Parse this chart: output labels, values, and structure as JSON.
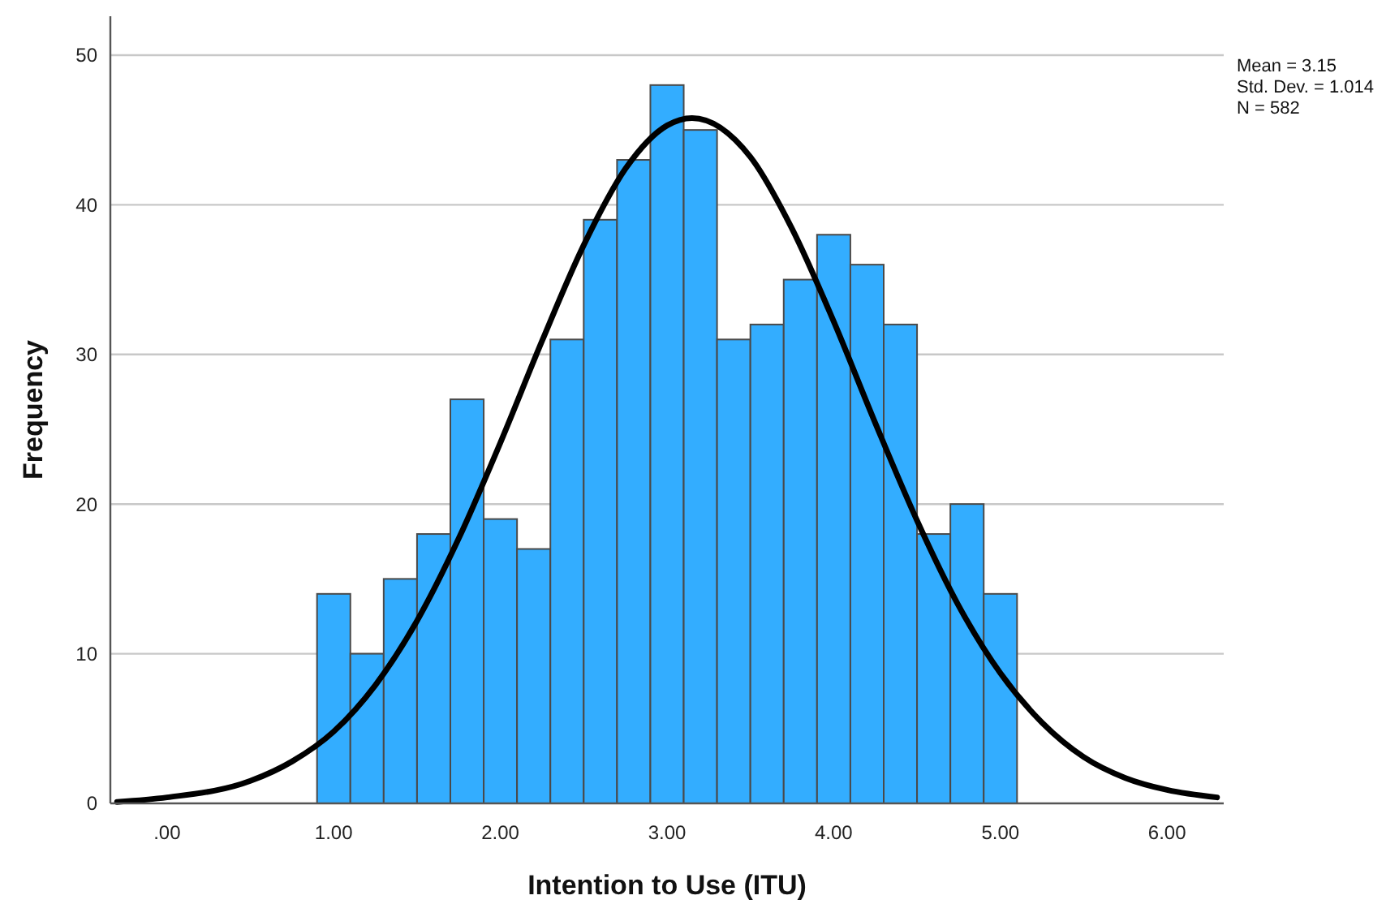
{
  "chart_data": {
    "type": "histogram",
    "xlabel": "Intention to Use (ITU)",
    "ylabel": "Frequency",
    "bins": [
      0.9,
      1.1,
      1.3,
      1.5,
      1.7,
      1.9,
      2.1,
      2.3,
      2.5,
      2.7,
      2.9,
      3.1,
      3.3,
      3.5,
      3.7,
      3.9,
      4.1,
      4.3,
      4.5,
      4.7,
      4.9,
      5.1
    ],
    "values": [
      14,
      10,
      15,
      18,
      27,
      19,
      17,
      31,
      39,
      43,
      48,
      45,
      31,
      32,
      35,
      38,
      36,
      32,
      18,
      20,
      14
    ],
    "color": "#33adff",
    "series": [
      {
        "type": "line",
        "color": "#000000",
        "x": [
          -0.3,
          0,
          0.5,
          0.75,
          1,
          1.25,
          1.5,
          1.75,
          2,
          2.25,
          2.5,
          2.75,
          3,
          3.15,
          3.5,
          3.75,
          4,
          4.25,
          4.5,
          4.75,
          5,
          5.25,
          5.5,
          5.75,
          6,
          6.3
        ],
        "values": [
          0.1,
          0.4,
          1.5,
          2.8,
          4.8,
          7.9,
          12.2,
          17.7,
          24.1,
          30.9,
          37.3,
          42.4,
          45.3,
          45.8,
          43.2,
          38.4,
          32.2,
          25.4,
          18.9,
          13.2,
          8.7,
          5.4,
          3.1,
          1.7,
          0.9,
          0.4
        ]
      }
    ],
    "xlim": [
      -0.34,
      6.34
    ],
    "ylim": [
      0,
      52.6
    ],
    "xticks": [
      {
        "value": 0,
        "label": ".00"
      },
      {
        "value": 1,
        "label": "1.00"
      },
      {
        "value": 2,
        "label": "2.00"
      },
      {
        "value": 3,
        "label": "3.00"
      },
      {
        "value": 4,
        "label": "4.00"
      },
      {
        "value": 5,
        "label": "5.00"
      },
      {
        "value": 6,
        "label": "6.00"
      }
    ],
    "yticks": [
      0,
      10,
      20,
      30,
      40,
      50
    ],
    "grid": "y",
    "line_style": "solid",
    "marker": "none",
    "annotations": [
      "Mean = 3.15",
      "Std. Dev. = 1.014",
      "N = 582"
    ]
  }
}
